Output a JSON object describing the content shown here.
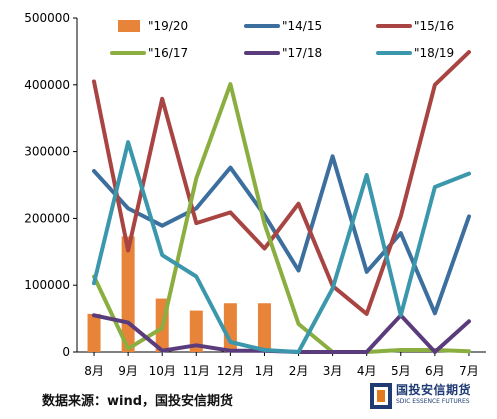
{
  "chart_data": {
    "type": "line",
    "categories": [
      "8月",
      "9月",
      "10月",
      "11月",
      "12月",
      "1月",
      "2月",
      "3月",
      "4月",
      "5月",
      "6月",
      "7月"
    ],
    "ylim": [
      0,
      500000
    ],
    "yticks": [
      "0",
      "100000",
      "200000",
      "300000",
      "400000",
      "500000"
    ],
    "legend_position": "top",
    "series": [
      {
        "name": "\"19/20",
        "type": "bar",
        "color": "#E8833A",
        "values": [
          57000,
          173000,
          80000,
          62000,
          73000,
          73000,
          null,
          null,
          null,
          null,
          null,
          null
        ]
      },
      {
        "name": "\"14/15",
        "type": "line",
        "color": "#3C6E9E",
        "values": [
          271000,
          215000,
          189000,
          215000,
          276000,
          205000,
          122000,
          293000,
          120000,
          178000,
          58000,
          203000
        ]
      },
      {
        "name": "\"15/16",
        "type": "line",
        "color": "#A84442",
        "values": [
          405000,
          152000,
          379000,
          193000,
          209000,
          155000,
          222000,
          99000,
          57000,
          203000,
          400000,
          449000
        ]
      },
      {
        "name": "\"16/17",
        "type": "line",
        "color": "#8BAE40",
        "values": [
          113000,
          5000,
          36000,
          260000,
          401000,
          192000,
          42000,
          0,
          0,
          3000,
          3000,
          1000
        ]
      },
      {
        "name": "\"17/18",
        "type": "line",
        "color": "#5A3C7C",
        "values": [
          55000,
          44000,
          2000,
          10000,
          2000,
          2000,
          0,
          0,
          0,
          55000,
          0,
          46000
        ]
      },
      {
        "name": "\"18/19",
        "type": "line",
        "color": "#3B97AC",
        "values": [
          103000,
          314000,
          145000,
          113000,
          15000,
          3000,
          0,
          95000,
          265000,
          55000,
          247000,
          267000
        ]
      }
    ]
  },
  "footer": {
    "source": "数据来源：wind，国投安信期货",
    "logo_text": "国投安信期货",
    "logo_sub": "SDIC ESSENCE FUTURES"
  }
}
